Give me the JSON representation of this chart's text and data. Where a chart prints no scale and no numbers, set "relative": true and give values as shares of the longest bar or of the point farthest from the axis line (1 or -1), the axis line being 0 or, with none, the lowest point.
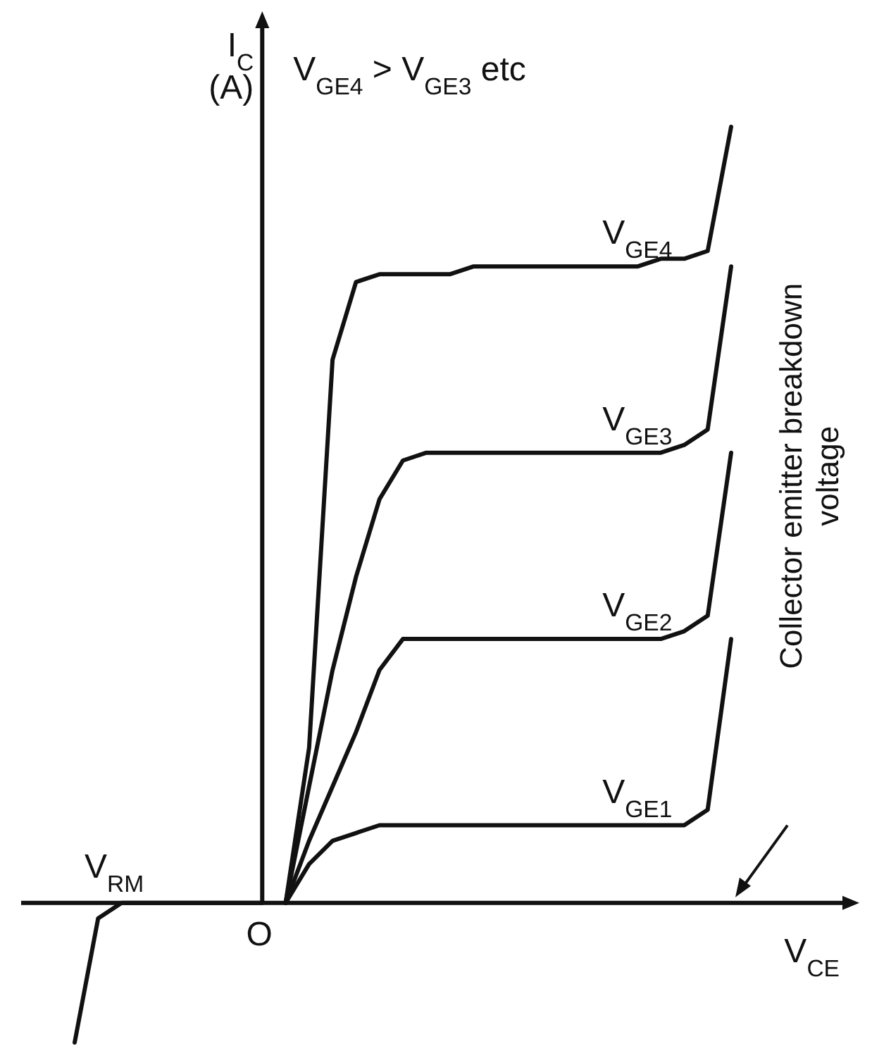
{
  "chart_data": {
    "type": "line",
    "relative": true,
    "title": "V$_{GE4}$ > V$_{GE3}$ etc",
    "xlabel": "V$_{CE}$",
    "ylabel": "I$_{C}$ (A)",
    "legend": false,
    "line_style": "solid",
    "categories": [
      null,
      null,
      null,
      null,
      null,
      null,
      null,
      null,
      null,
      null,
      null,
      null,
      null,
      null,
      null,
      null,
      null,
      null,
      null,
      null,
      null,
      null,
      null,
      null,
      null,
      null,
      null,
      null,
      null
    ],
    "annotations": [
      "O",
      "V$_{RM}$",
      "Collector emitter breakdown voltage"
    ],
    "series": [
      {
        "name": "V$_{GE4}$",
        "color": "#111111",
        "values": [
          null,
          null,
          null,
          null,
          null,
          null,
          null,
          null,
          null,
          0,
          0.2,
          0.7,
          0.8,
          0.81,
          0.81,
          0.81,
          0.81,
          0.82,
          0.82,
          0.82,
          0.82,
          0.82,
          0.82,
          0.82,
          0.82,
          0.83,
          0.83,
          0.84,
          1.0
        ]
      },
      {
        "name": "V$_{GE3}$",
        "color": "#111111",
        "values": [
          null,
          null,
          null,
          null,
          null,
          null,
          null,
          null,
          null,
          0,
          0.15,
          0.3,
          0.42,
          0.52,
          0.57,
          0.58,
          0.58,
          0.58,
          0.58,
          0.58,
          0.58,
          0.58,
          0.58,
          0.58,
          0.58,
          0.58,
          0.59,
          0.61,
          0.82
        ]
      },
      {
        "name": "V$_{GE2}$",
        "color": "#111111",
        "values": [
          null,
          null,
          null,
          null,
          null,
          null,
          null,
          null,
          null,
          0,
          0.08,
          0.15,
          0.22,
          0.3,
          0.34,
          0.34,
          0.34,
          0.34,
          0.34,
          0.34,
          0.34,
          0.34,
          0.34,
          0.34,
          0.34,
          0.34,
          0.35,
          0.37,
          0.58
        ]
      },
      {
        "name": "V$_{GE1}$",
        "color": "#111111",
        "values": [
          null,
          null,
          null,
          null,
          null,
          null,
          null,
          null,
          null,
          0,
          0.05,
          0.08,
          0.09,
          0.1,
          0.1,
          0.1,
          0.1,
          0.1,
          0.1,
          0.1,
          0.1,
          0.1,
          0.1,
          0.1,
          0.1,
          0.1,
          0.1,
          0.12,
          0.34
        ]
      },
      {
        "color": "#111111",
        "values": [
          -0.18,
          -0.02,
          0,
          0,
          0,
          0,
          0,
          0,
          0,
          null,
          null,
          null,
          null,
          null,
          null,
          null,
          null,
          null,
          null,
          null,
          null,
          null,
          null,
          null,
          null,
          null,
          null,
          null,
          null
        ]
      }
    ]
  }
}
